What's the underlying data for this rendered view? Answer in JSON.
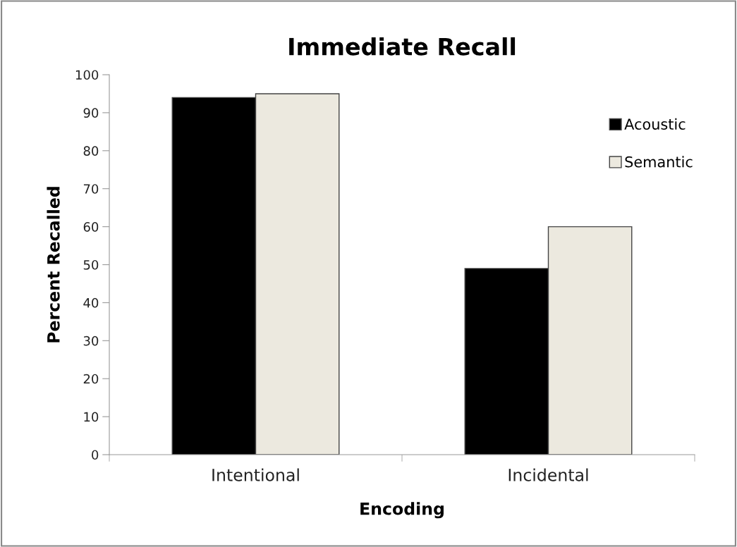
{
  "chart_data": {
    "type": "bar",
    "title": "Immediate Recall",
    "xlabel": "Encoding",
    "ylabel": "Percent Recalled",
    "categories": [
      "Intentional",
      "Incidental"
    ],
    "series": [
      {
        "name": "Acoustic",
        "color": "#000000",
        "values": [
          94,
          49
        ]
      },
      {
        "name": "Semantic",
        "color": "#ece9df",
        "values": [
          95,
          60
        ]
      }
    ],
    "ylim": [
      0,
      100
    ],
    "yticks": [
      0,
      10,
      20,
      30,
      40,
      50,
      60,
      70,
      80,
      90,
      100
    ],
    "grid": false,
    "legend": "top right"
  }
}
